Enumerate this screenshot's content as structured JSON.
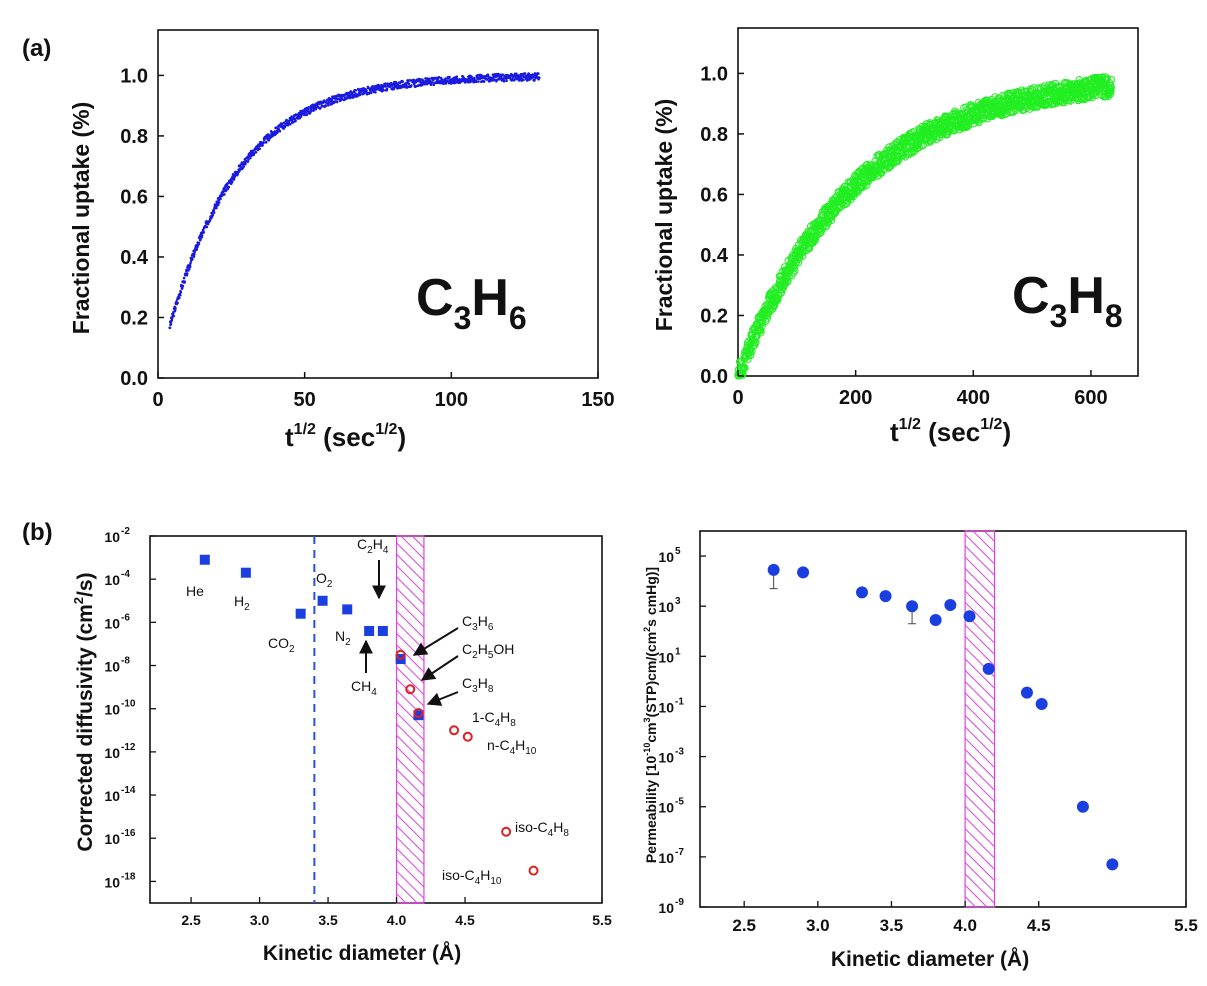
{
  "panel_labels": {
    "a": "(a)",
    "b": "(b)"
  },
  "chart_data": [
    {
      "id": "uptake-c3h6",
      "type": "scatter",
      "title": "",
      "series_label": {
        "base1": "C",
        "sub1": "3",
        "base2": "H",
        "sub2": "6"
      },
      "xlabel": {
        "base": "t",
        "sup": "1/2",
        "mid": " (sec",
        "sup2": "1/2",
        "end": ")"
      },
      "ylabel": "Fractional uptake (%)",
      "xlim": [
        0,
        150
      ],
      "ylim": [
        0.0,
        1.15
      ],
      "xticks": [
        "0",
        "50",
        "100",
        "150"
      ],
      "yticks": [
        "0.0",
        "0.2",
        "0.4",
        "0.6",
        "0.8",
        "1.0"
      ],
      "curve": {
        "x_start": 4,
        "x_end": 130,
        "y_start": 0.17,
        "tau": 24,
        "color": "#1a1adf"
      }
    },
    {
      "id": "uptake-c3h8",
      "type": "scatter",
      "title": "",
      "series_label": {
        "base1": "C",
        "sub1": "3",
        "base2": "H",
        "sub2": "8"
      },
      "xlabel": {
        "base": "t",
        "sup": "1/2",
        "mid": " (sec",
        "sup2": "1/2",
        "end": ")"
      },
      "ylabel": "Fractional uptake (%)",
      "xlim": [
        0,
        680
      ],
      "ylim": [
        0.0,
        1.15
      ],
      "xticks": [
        "0",
        "200",
        "400",
        "600"
      ],
      "yticks": [
        "0.0",
        "0.2",
        "0.4",
        "0.6",
        "0.8",
        "1.0"
      ],
      "curve": {
        "x_start": 0,
        "x_end": 635,
        "y_start": 0.0,
        "tau": 200,
        "color": "#22ee22"
      }
    },
    {
      "id": "diffusivity",
      "type": "scatter",
      "xlabel": "Kinetic diameter (Å)",
      "ylabel": {
        "base": "Corrected  diffusivity (cm",
        "sup": "2",
        "end": "/s)"
      },
      "xlim": [
        2.2,
        5.5
      ],
      "ylim_log10": [
        -19,
        -2
      ],
      "xticks": [
        "2.5",
        "3.0",
        "3.5",
        "4.0",
        "4.5",
        "5.5"
      ],
      "ytick_exponents": [
        "-2",
        "-4",
        "-6",
        "-8",
        "-10",
        "-12",
        "-14",
        "-16",
        "-18"
      ],
      "ytick_base": "10",
      "dashed_line_x": 3.4,
      "hatch_band": [
        4.0,
        4.2
      ],
      "points": [
        {
          "name": "He",
          "x": 2.6,
          "log_y": -3.1,
          "marker": "square"
        },
        {
          "name": "H2",
          "x": 2.9,
          "log_y": -3.7,
          "marker": "square"
        },
        {
          "name": "CO2",
          "x": 3.3,
          "log_y": -5.6,
          "marker": "square"
        },
        {
          "name": "O2",
          "x": 3.46,
          "log_y": -5.0,
          "marker": "square"
        },
        {
          "name": "N2",
          "x": 3.64,
          "log_y": -5.4,
          "marker": "square"
        },
        {
          "name": "CH4",
          "x": 3.8,
          "log_y": -6.4,
          "marker": "square"
        },
        {
          "name": "C2H4",
          "x": 3.9,
          "log_y": -6.4,
          "marker": "square"
        },
        {
          "name": "C3H6 (square)",
          "x": 4.03,
          "log_y": -7.7,
          "marker": "square"
        },
        {
          "name": "C3H8 (square)",
          "x": 4.16,
          "log_y": -10.3,
          "marker": "square"
        },
        {
          "name": "C3H6",
          "x": 4.03,
          "log_y": -7.5,
          "marker": "circle"
        },
        {
          "name": "C2H5OH",
          "x": 4.1,
          "log_y": -9.1,
          "marker": "circle"
        },
        {
          "name": "C3H8",
          "x": 4.16,
          "log_y": -10.2,
          "marker": "circle"
        },
        {
          "name": "1-C4H8",
          "x": 4.42,
          "log_y": -11.0,
          "marker": "circle"
        },
        {
          "name": "n-C4H10",
          "x": 4.52,
          "log_y": -11.3,
          "marker": "circle"
        },
        {
          "name": "iso-C4H8",
          "x": 4.8,
          "log_y": -15.7,
          "marker": "circle"
        },
        {
          "name": "iso-C4H10",
          "x": 5.0,
          "log_y": -17.5,
          "marker": "circle"
        }
      ],
      "labels": {
        "he": "He",
        "h2": {
          "base": "H",
          "sub": "2"
        },
        "co2": {
          "base": "CO",
          "sub": "2"
        },
        "o2": {
          "base": "O",
          "sub": "2"
        },
        "n2": {
          "base": "N",
          "sub": "2"
        },
        "ch4": {
          "base": "CH",
          "sub": "4"
        },
        "c2h4": {
          "b1": "C",
          "s1": "2",
          "b2": "H",
          "s2": "4"
        },
        "c3h6": {
          "b1": "C",
          "s1": "3",
          "b2": "H",
          "s2": "6"
        },
        "c2h5oh": {
          "b1": "C",
          "s1": "2",
          "b2": "H",
          "s2": "5",
          "b3": "OH"
        },
        "c3h8": {
          "b1": "C",
          "s1": "3",
          "b2": "H",
          "s2": "8"
        },
        "c4h8": {
          "b1": "1-C",
          "s1": "4",
          "b2": "H",
          "s2": "8"
        },
        "nc4h10": {
          "b1": "n-C",
          "s1": "4",
          "b2": "H",
          "s2": "10"
        },
        "isoc4h8": {
          "b1": "iso-C",
          "s1": "4",
          "b2": "H",
          "s2": "8"
        },
        "isoc4h10": {
          "b1": "iso-C",
          "s1": "4",
          "b2": "H",
          "s2": "10"
        }
      },
      "colors": {
        "square": "#1a3fe0",
        "circle": "#e02020",
        "dashed": "#2a4fe8",
        "hatch": "#e040e0"
      }
    },
    {
      "id": "permeability",
      "type": "scatter",
      "xlabel": "Kinetic diameter (Å)",
      "ylabel": "Permeability [10^-10 cm^3(STP)cm/(cm^2 s cmHg)]",
      "ylabel_parts": {
        "a": "Permeability [10",
        "b": "-10",
        "c": "cm",
        "d": "3",
        "e": "(STP)cm/(cm",
        "f": "2",
        "g": "s cmHg)]"
      },
      "xlim": [
        2.2,
        5.5
      ],
      "ylim_log10": [
        -9,
        6
      ],
      "xticks": [
        "2.5",
        "3.0",
        "3.5",
        "4.0",
        "4.5",
        "5.5"
      ],
      "ytick_exponents": [
        "5",
        "3",
        "1",
        "-1",
        "-3",
        "-5",
        "-7",
        "-9"
      ],
      "ytick_base": "10",
      "hatch_band": [
        4.0,
        4.2
      ],
      "points": [
        {
          "x": 2.7,
          "log_y": 4.45,
          "err_low": 3.7
        },
        {
          "x": 2.9,
          "log_y": 4.35
        },
        {
          "x": 3.3,
          "log_y": 3.55
        },
        {
          "x": 3.46,
          "log_y": 3.4
        },
        {
          "x": 3.64,
          "log_y": 3.0,
          "err_low": 2.3
        },
        {
          "x": 3.8,
          "log_y": 2.45
        },
        {
          "x": 3.9,
          "log_y": 3.05
        },
        {
          "x": 4.03,
          "log_y": 2.6
        },
        {
          "x": 4.16,
          "log_y": 0.5
        },
        {
          "x": 4.42,
          "log_y": -0.45
        },
        {
          "x": 4.52,
          "log_y": -0.9
        },
        {
          "x": 4.8,
          "log_y": -5.0
        },
        {
          "x": 5.0,
          "log_y": -7.3
        }
      ],
      "colors": {
        "marker": "#1a3fe0",
        "hatch": "#e040e0"
      }
    }
  ]
}
